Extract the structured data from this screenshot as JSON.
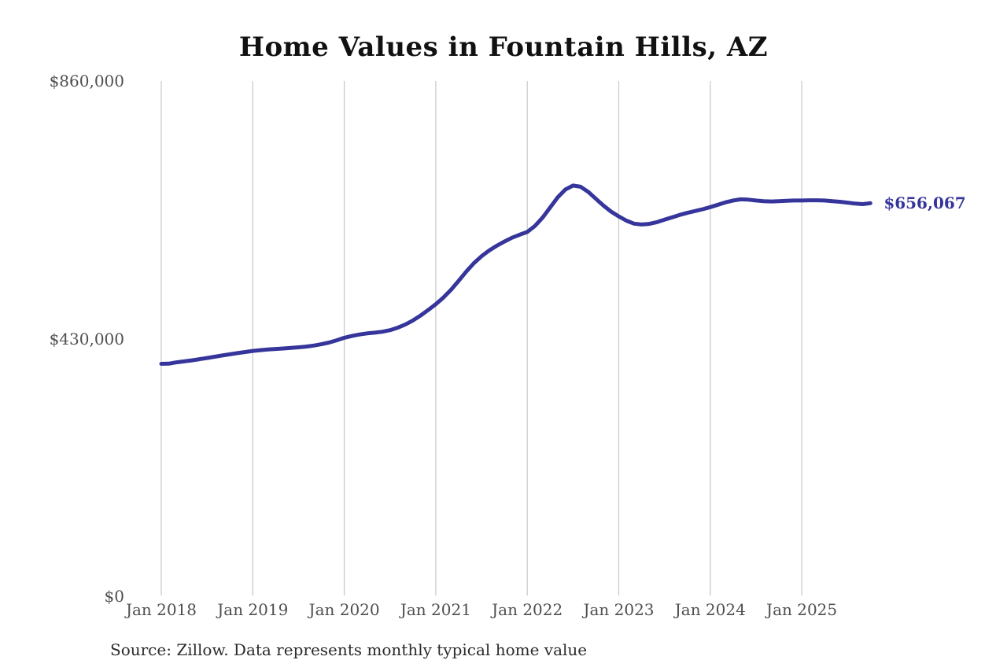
{
  "chart_data": {
    "type": "line",
    "title": "Home Values in Fountain Hills, AZ",
    "source_note": "Source: Zillow. Data represents monthly typical home value",
    "series_name": "Monthly typical home value",
    "end_label": "$656,067",
    "latest_value": 656067,
    "values_start": "Jan 2018",
    "values_interval": "monthly",
    "ylim": [
      0,
      860000
    ],
    "y_ticks": [
      {
        "value": 0,
        "label": "$0"
      },
      {
        "value": 430000,
        "label": "$430,000"
      },
      {
        "value": 860000,
        "label": "$860,000"
      }
    ],
    "x_tick_labels": [
      "Jan 2018",
      "Jan 2019",
      "Jan 2020",
      "Jan 2021",
      "Jan 2022",
      "Jan 2023",
      "Jan 2024",
      "Jan 2025"
    ],
    "grid": "vertical-yearly",
    "legend": "none",
    "colors": {
      "line": "#35359b",
      "end_label": "#35359b",
      "grid": "#cccccc",
      "tick_text": "#4f4f4f",
      "title_text": "#111111",
      "source_text": "#2b2b2b"
    },
    "monthly_values": [
      388000,
      388300,
      390500,
      392000,
      393800,
      395700,
      397700,
      399800,
      401900,
      403900,
      405800,
      407700,
      409500,
      410800,
      411900,
      412800,
      413600,
      414500,
      415500,
      416800,
      418500,
      420700,
      423500,
      427200,
      431500,
      434500,
      437000,
      438800,
      440000,
      441500,
      444200,
      448200,
      453500,
      460300,
      468500,
      477800,
      487500,
      498500,
      511500,
      526500,
      542000,
      556000,
      567500,
      577000,
      585000,
      592000,
      598500,
      603500,
      608000,
      618000,
      632000,
      649000,
      666000,
      679000,
      685500,
      683500,
      675000,
      663500,
      652000,
      642000,
      634000,
      627000,
      622000,
      620500,
      621500,
      624500,
      628500,
      632500,
      636500,
      640000,
      643000,
      646000,
      649500,
      653500,
      657500,
      660500,
      662500,
      662000,
      660500,
      659500,
      659000,
      659500,
      660000,
      660500,
      660500,
      661000,
      661000,
      660500,
      659500,
      658500,
      657000,
      655500,
      654500,
      656067
    ]
  }
}
